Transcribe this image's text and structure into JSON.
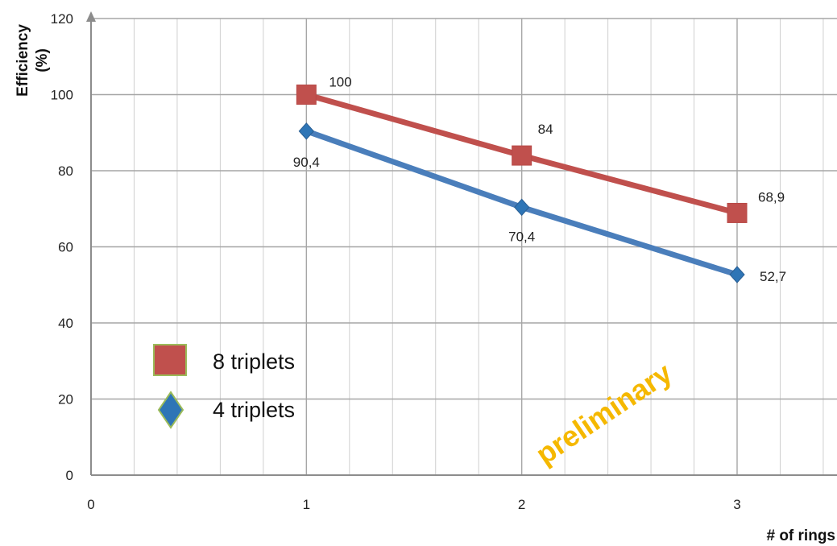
{
  "chart_data": {
    "type": "line",
    "x": [
      1,
      2,
      3
    ],
    "xlim": [
      0,
      3
    ],
    "ylim": [
      0,
      120
    ],
    "xticks": [
      "0",
      "1",
      "2",
      "3"
    ],
    "yticks": [
      "0",
      "20",
      "40",
      "60",
      "80",
      "100",
      "120"
    ],
    "xlabel": "# of rings",
    "ylabel_line1": "Efficiency",
    "ylabel_line2": "(%)",
    "grid": true,
    "legend_position": "lower-left",
    "annotation": "preliminary",
    "series": [
      {
        "name": "8 triplets",
        "values": [
          100,
          84,
          68.9
        ],
        "labels": [
          "100",
          "84",
          "68,9"
        ],
        "color": "#c0504d",
        "marker": "square"
      },
      {
        "name": "4 triplets",
        "values": [
          90.4,
          70.4,
          52.7
        ],
        "labels": [
          "90,4",
          "70,4",
          "52,7"
        ],
        "color": "#4a7ebb",
        "marker": "diamond"
      }
    ]
  }
}
